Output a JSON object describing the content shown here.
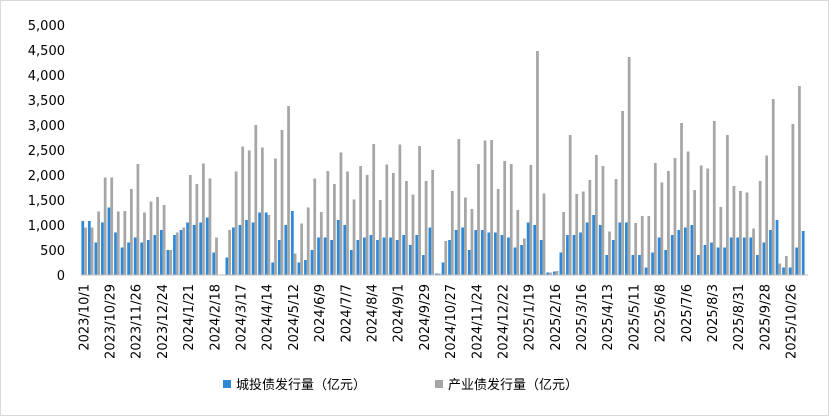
{
  "chart_data": {
    "type": "bar",
    "title": "",
    "xlabel": "",
    "ylabel": "",
    "ylim": [
      0,
      5000
    ],
    "y_ticks": [
      "0",
      "500",
      "1,000",
      "1,500",
      "2,000",
      "2,500",
      "3,000",
      "3,500",
      "4,000",
      "4,500",
      "5,000"
    ],
    "grid": false,
    "legend_position": "bottom",
    "x_tick_labels": [
      "2023/10/1",
      "2023/10/29",
      "2023/11/26",
      "2023/12/24",
      "2024/1/21",
      "2024/2/18",
      "2024/3/17",
      "2024/4/14",
      "2024/5/12",
      "2024/6/9",
      "2024/7/7",
      "2024/8/4",
      "2024/9/1",
      "2024/9/29",
      "2024/10/27",
      "2024/11/24",
      "2024/12/22",
      "2025/1/19",
      "2025/2/16",
      "2025/3/16",
      "2025/4/13",
      "2025/5/11",
      "2025/6/8",
      "2025/7/6",
      "2025/8/3",
      "2025/8/31",
      "2025/9/28",
      "2025/10/26"
    ],
    "series": [
      {
        "name": "城投债发行量（亿元）",
        "color": "#2e8ad8",
        "values": [
          1080,
          1080,
          650,
          1050,
          1350,
          850,
          550,
          650,
          750,
          650,
          700,
          800,
          900,
          500,
          800,
          900,
          1050,
          1000,
          1050,
          1150,
          450,
          0,
          350,
          950,
          1000,
          1100,
          1050,
          1250,
          1250,
          250,
          700,
          1000,
          1280,
          250,
          300,
          500,
          750,
          750,
          700,
          1100,
          1000,
          500,
          700,
          750,
          800,
          700,
          750,
          750,
          700,
          800,
          600,
          800,
          400,
          950,
          30,
          250,
          700,
          900,
          950,
          500,
          900,
          900,
          850,
          850,
          800,
          750,
          550,
          600,
          1050,
          1000,
          700,
          50,
          70,
          450,
          800,
          800,
          850,
          1050,
          1200,
          1000,
          400,
          700,
          1050,
          1050,
          400,
          400,
          150,
          450,
          750,
          500,
          800,
          900,
          950,
          1000,
          400,
          600,
          650,
          550,
          550,
          750,
          750,
          750,
          750,
          400,
          650,
          900,
          1100,
          150,
          150,
          550,
          880
        ],
        "mark_color": "#2e8ad8"
      },
      {
        "name": "产业债发行量（亿元）",
        "color": "#a6a6a6",
        "values": [
          950,
          950,
          1270,
          1950,
          1950,
          1270,
          1280,
          1720,
          2220,
          1250,
          1470,
          1560,
          1400,
          500,
          850,
          950,
          2000,
          1820,
          2230,
          1930,
          750,
          0,
          900,
          2070,
          2570,
          2490,
          3000,
          2550,
          1200,
          2330,
          2900,
          3380,
          430,
          1030,
          1350,
          1930,
          1260,
          2080,
          1820,
          2450,
          2070,
          1510,
          2180,
          2000,
          2620,
          1500,
          2210,
          2040,
          2610,
          1880,
          1610,
          2580,
          1880,
          2100,
          30,
          680,
          1680,
          2720,
          1550,
          1320,
          2220,
          2690,
          2700,
          1720,
          2280,
          2220,
          1300,
          730,
          2200,
          4480,
          1630,
          50,
          80,
          1260,
          2800,
          1620,
          1670,
          1900,
          2400,
          2180,
          870,
          1920,
          3280,
          4360,
          1040,
          1180,
          1180,
          2240,
          1850,
          2080,
          2340,
          3040,
          2470,
          1700,
          2190,
          2130,
          3080,
          1360,
          2800,
          1780,
          1680,
          1650,
          930,
          1880,
          2390,
          3520,
          230,
          380,
          3020,
          3780
        ],
        "mark_color": "#a6a6a6"
      }
    ]
  }
}
